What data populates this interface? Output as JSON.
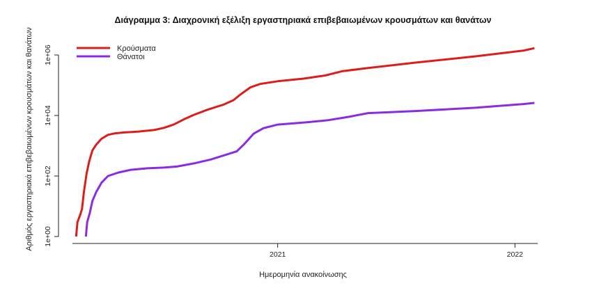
{
  "chart_data": {
    "type": "line",
    "title": "Διάγραμμα 3: Διαχρονική εξέλιξη εργαστηριακά επιβεβαιωμένων κρουσμάτων και θανάτων",
    "xlabel": "Ημερομηνία ανακοίνωσης",
    "ylabel": "Αριθμός εργαστηριακά επιβεβαιωμένων κρουσμάτων και θανάτων",
    "y_scale": "log10",
    "ylim": [
      1,
      1000000
    ],
    "xlim": [
      "2020-02-01",
      "2022-02-05"
    ],
    "x_ticks": [
      {
        "date": "2021-01-01",
        "label": "2021"
      },
      {
        "date": "2022-01-01",
        "label": "2022"
      }
    ],
    "y_ticks": [
      {
        "value": 1,
        "label": "1e+00"
      },
      {
        "value": 100,
        "label": "1e+02"
      },
      {
        "value": 10000,
        "label": "1e+04"
      },
      {
        "value": 1000000,
        "label": "1e+06"
      }
    ],
    "legend_position": "top-left",
    "grid": false,
    "series": [
      {
        "name": "Κρούσματα",
        "color": "#dd1c1c",
        "points": [
          [
            "2020-02-26",
            1
          ],
          [
            "2020-02-28",
            3
          ],
          [
            "2020-03-03",
            5
          ],
          [
            "2020-03-06",
            8
          ],
          [
            "2020-03-09",
            30
          ],
          [
            "2020-03-13",
            120
          ],
          [
            "2020-03-17",
            300
          ],
          [
            "2020-03-22",
            700
          ],
          [
            "2020-03-28",
            1100
          ],
          [
            "2020-04-05",
            1700
          ],
          [
            "2020-04-15",
            2300
          ],
          [
            "2020-04-25",
            2550
          ],
          [
            "2020-05-10",
            2750
          ],
          [
            "2020-06-01",
            2950
          ],
          [
            "2020-06-25",
            3300
          ],
          [
            "2020-07-10",
            3900
          ],
          [
            "2020-07-25",
            5000
          ],
          [
            "2020-08-10",
            7500
          ],
          [
            "2020-08-25",
            10500
          ],
          [
            "2020-09-15",
            15500
          ],
          [
            "2020-10-10",
            23000
          ],
          [
            "2020-10-25",
            32000
          ],
          [
            "2020-11-05",
            50000
          ],
          [
            "2020-11-20",
            85000
          ],
          [
            "2020-12-05",
            110000
          ],
          [
            "2021-01-01",
            135000
          ],
          [
            "2021-02-10",
            165000
          ],
          [
            "2021-03-15",
            210000
          ],
          [
            "2021-04-10",
            290000
          ],
          [
            "2021-05-20",
            370000
          ],
          [
            "2021-08-01",
            560000
          ],
          [
            "2021-11-01",
            900000
          ],
          [
            "2022-01-15",
            1400000
          ],
          [
            "2022-01-31",
            1680000
          ]
        ]
      },
      {
        "name": "Θάνατοι",
        "color": "#8a2be2",
        "points": [
          [
            "2020-03-12",
            1
          ],
          [
            "2020-03-14",
            3
          ],
          [
            "2020-03-18",
            6
          ],
          [
            "2020-03-22",
            15
          ],
          [
            "2020-03-28",
            30
          ],
          [
            "2020-04-05",
            60
          ],
          [
            "2020-04-15",
            100
          ],
          [
            "2020-05-01",
            130
          ],
          [
            "2020-05-20",
            160
          ],
          [
            "2020-06-15",
            180
          ],
          [
            "2020-07-10",
            190
          ],
          [
            "2020-07-30",
            205
          ],
          [
            "2020-08-25",
            260
          ],
          [
            "2020-09-20",
            350
          ],
          [
            "2020-10-10",
            480
          ],
          [
            "2020-10-30",
            650
          ],
          [
            "2020-11-10",
            1100
          ],
          [
            "2020-11-25",
            2500
          ],
          [
            "2020-12-10",
            3800
          ],
          [
            "2021-01-01",
            5000
          ],
          [
            "2021-02-15",
            6000
          ],
          [
            "2021-03-20",
            7000
          ],
          [
            "2021-04-20",
            9000
          ],
          [
            "2021-05-20",
            12000
          ],
          [
            "2021-08-01",
            14000
          ],
          [
            "2021-11-01",
            18000
          ],
          [
            "2022-01-15",
            24000
          ],
          [
            "2022-01-31",
            26000
          ]
        ]
      }
    ]
  }
}
